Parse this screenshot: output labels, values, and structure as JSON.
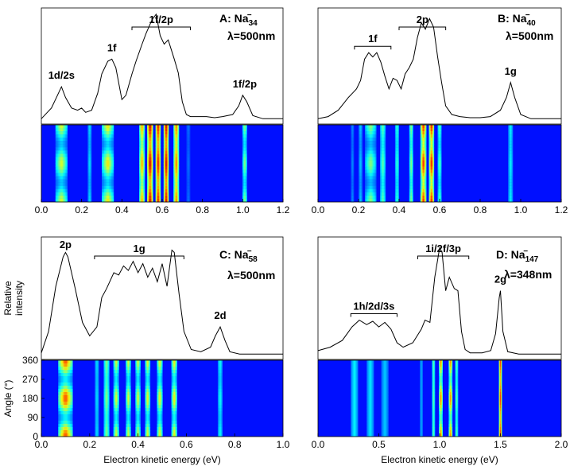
{
  "chart_data": [
    {
      "type": "line",
      "panel": "A",
      "species": "Na",
      "size": "34",
      "charge": "−",
      "wavelength": "λ=500nm",
      "xlim": [
        0,
        1.2
      ],
      "xticks": [
        "0.0",
        "0.2",
        "0.4",
        "0.6",
        "0.8",
        "1.0",
        "1.2"
      ],
      "spectrum": {
        "x": [
          0.0,
          0.05,
          0.08,
          0.1,
          0.12,
          0.15,
          0.18,
          0.2,
          0.22,
          0.25,
          0.28,
          0.3,
          0.33,
          0.35,
          0.37,
          0.4,
          0.42,
          0.45,
          0.47,
          0.5,
          0.52,
          0.55,
          0.57,
          0.59,
          0.61,
          0.63,
          0.66,
          0.68,
          0.7,
          0.72,
          0.74,
          0.78,
          0.82,
          0.86,
          0.9,
          0.95,
          0.98,
          1.0,
          1.02,
          1.05,
          1.1,
          1.15,
          1.2
        ],
        "y": [
          0.02,
          0.12,
          0.24,
          0.32,
          0.22,
          0.12,
          0.1,
          0.12,
          0.08,
          0.1,
          0.26,
          0.44,
          0.56,
          0.58,
          0.5,
          0.2,
          0.24,
          0.44,
          0.56,
          0.72,
          0.82,
          0.95,
          1.0,
          0.8,
          0.72,
          0.76,
          0.58,
          0.45,
          0.18,
          0.06,
          0.04,
          0.04,
          0.04,
          0.03,
          0.04,
          0.06,
          0.14,
          0.24,
          0.18,
          0.05,
          0.02,
          0.02,
          0.02
        ]
      },
      "peaks": [
        {
          "label": "1d/2s",
          "x": 0.1,
          "y": 0.32
        },
        {
          "label": "1f",
          "x": 0.35,
          "y": 0.58
        },
        {
          "label": "1f/2p",
          "x": 0.57,
          "y": 1.0,
          "bracket": [
            0.45,
            0.74
          ]
        },
        {
          "label": "1f/2p",
          "x": 1.01,
          "y": 0.24
        }
      ],
      "angular_map": {
        "bands": [
          {
            "x": 0.1,
            "w": 0.03,
            "i": 0.55,
            "mod": 0.6
          },
          {
            "x": 0.33,
            "w": 0.03,
            "i": 0.6,
            "mod": 0.6
          },
          {
            "x": 0.24,
            "w": 0.01,
            "i": 0.25,
            "mod": 0.2
          },
          {
            "x": 0.5,
            "w": 0.014,
            "i": 0.7,
            "mod": 0.3
          },
          {
            "x": 0.54,
            "w": 0.015,
            "i": 0.95,
            "mod": 0.25
          },
          {
            "x": 0.58,
            "w": 0.013,
            "i": 0.9,
            "mod": 0.2
          },
          {
            "x": 0.62,
            "w": 0.013,
            "i": 0.95,
            "mod": 0.2
          },
          {
            "x": 0.67,
            "w": 0.014,
            "i": 0.75,
            "mod": 0.2
          },
          {
            "x": 0.73,
            "w": 0.01,
            "i": 0.12,
            "mod": 0.2
          },
          {
            "x": 1.01,
            "w": 0.012,
            "i": 0.45,
            "mod": 0.4
          }
        ]
      }
    },
    {
      "type": "line",
      "panel": "B",
      "species": "Na",
      "size": "40",
      "charge": "−",
      "wavelength": "λ=500nm",
      "xlim": [
        0,
        1.2
      ],
      "xticks": [
        "0.0",
        "0.2",
        "0.4",
        "0.6",
        "0.8",
        "1.0",
        "1.2"
      ],
      "spectrum": {
        "x": [
          0.0,
          0.05,
          0.1,
          0.15,
          0.17,
          0.19,
          0.21,
          0.23,
          0.25,
          0.27,
          0.29,
          0.31,
          0.33,
          0.35,
          0.37,
          0.39,
          0.41,
          0.43,
          0.45,
          0.47,
          0.49,
          0.51,
          0.53,
          0.55,
          0.57,
          0.59,
          0.61,
          0.63,
          0.66,
          0.7,
          0.75,
          0.8,
          0.85,
          0.9,
          0.93,
          0.95,
          0.97,
          1.0,
          1.05,
          1.1,
          1.2
        ],
        "y": [
          0.02,
          0.04,
          0.1,
          0.22,
          0.26,
          0.3,
          0.38,
          0.58,
          0.64,
          0.6,
          0.64,
          0.55,
          0.42,
          0.3,
          0.4,
          0.38,
          0.3,
          0.44,
          0.5,
          0.58,
          0.78,
          0.92,
          0.86,
          0.96,
          0.88,
          0.6,
          0.36,
          0.14,
          0.06,
          0.04,
          0.03,
          0.03,
          0.04,
          0.1,
          0.22,
          0.36,
          0.22,
          0.06,
          0.02,
          0.02,
          0.02
        ]
      },
      "peaks": [
        {
          "label": "1f",
          "x": 0.27,
          "y": 0.64,
          "bracket": [
            0.18,
            0.36
          ]
        },
        {
          "label": "2p",
          "x": 0.55,
          "y": 0.96,
          "bracket": [
            0.4,
            0.63
          ]
        },
        {
          "label": "1g",
          "x": 0.95,
          "y": 0.36
        }
      ],
      "angular_map": {
        "bands": [
          {
            "x": 0.17,
            "w": 0.008,
            "i": 0.15,
            "mod": 0.2
          },
          {
            "x": 0.21,
            "w": 0.01,
            "i": 0.22,
            "mod": 0.2
          },
          {
            "x": 0.26,
            "w": 0.028,
            "i": 0.45,
            "mod": 0.55
          },
          {
            "x": 0.32,
            "w": 0.014,
            "i": 0.4,
            "mod": 0.25
          },
          {
            "x": 0.39,
            "w": 0.01,
            "i": 0.35,
            "mod": 0.2
          },
          {
            "x": 0.46,
            "w": 0.01,
            "i": 0.45,
            "mod": 0.25
          },
          {
            "x": 0.52,
            "w": 0.015,
            "i": 0.85,
            "mod": 0.35
          },
          {
            "x": 0.56,
            "w": 0.013,
            "i": 0.88,
            "mod": 0.35
          },
          {
            "x": 0.6,
            "w": 0.01,
            "i": 0.4,
            "mod": 0.3
          },
          {
            "x": 0.95,
            "w": 0.012,
            "i": 0.28,
            "mod": 0.1
          }
        ]
      }
    },
    {
      "type": "line",
      "panel": "C",
      "species": "Na",
      "size": "58",
      "charge": "−",
      "wavelength": "λ=500nm",
      "xlim": [
        0,
        1.0
      ],
      "xticks": [
        "0.0",
        "0.2",
        "0.4",
        "0.6",
        "0.8",
        "1.0"
      ],
      "ylabel": "Relative intensity",
      "map_ylabel": "Angle (°)",
      "map_yticks": [
        "0",
        "90",
        "180",
        "270",
        "360"
      ],
      "spectrum": {
        "x": [
          0.0,
          0.03,
          0.06,
          0.09,
          0.1,
          0.11,
          0.14,
          0.17,
          0.2,
          0.23,
          0.25,
          0.27,
          0.3,
          0.32,
          0.34,
          0.36,
          0.38,
          0.4,
          0.42,
          0.44,
          0.46,
          0.48,
          0.5,
          0.52,
          0.54,
          0.55,
          0.57,
          0.59,
          0.62,
          0.66,
          0.7,
          0.72,
          0.74,
          0.76,
          0.78,
          0.82,
          0.9,
          1.0
        ],
        "y": [
          0.03,
          0.22,
          0.62,
          0.88,
          0.92,
          0.88,
          0.6,
          0.3,
          0.18,
          0.26,
          0.52,
          0.6,
          0.74,
          0.72,
          0.8,
          0.76,
          0.84,
          0.74,
          0.82,
          0.7,
          0.78,
          0.66,
          0.82,
          0.62,
          0.94,
          0.92,
          0.55,
          0.22,
          0.06,
          0.04,
          0.08,
          0.18,
          0.26,
          0.14,
          0.04,
          0.02,
          0.02,
          0.02
        ]
      },
      "peaks": [
        {
          "label": "2p",
          "x": 0.1,
          "y": 0.92
        },
        {
          "label": "1g",
          "x": 0.4,
          "y": 0.84,
          "bracket": [
            0.22,
            0.59
          ]
        },
        {
          "label": "2d",
          "x": 0.74,
          "y": 0.26
        }
      ],
      "angular_map": {
        "bands": [
          {
            "x": 0.1,
            "w": 0.03,
            "i": 0.8,
            "mod": 0.65
          },
          {
            "x": 0.23,
            "w": 0.009,
            "i": 0.25,
            "mod": 0.1
          },
          {
            "x": 0.27,
            "w": 0.012,
            "i": 0.45,
            "mod": 0.2
          },
          {
            "x": 0.31,
            "w": 0.012,
            "i": 0.55,
            "mod": 0.5
          },
          {
            "x": 0.36,
            "w": 0.011,
            "i": 0.55,
            "mod": 0.5
          },
          {
            "x": 0.4,
            "w": 0.011,
            "i": 0.55,
            "mod": 0.5
          },
          {
            "x": 0.44,
            "w": 0.011,
            "i": 0.58,
            "mod": 0.5
          },
          {
            "x": 0.49,
            "w": 0.012,
            "i": 0.58,
            "mod": 0.5
          },
          {
            "x": 0.55,
            "w": 0.012,
            "i": 0.6,
            "mod": 0.5
          },
          {
            "x": 0.74,
            "w": 0.01,
            "i": 0.3,
            "mod": 0.2
          }
        ]
      }
    },
    {
      "type": "line",
      "panel": "D",
      "species": "Na",
      "size": "147",
      "charge": "−",
      "wavelength": "λ=348nm",
      "xlim": [
        0,
        2.0
      ],
      "xticks": [
        "0.0",
        "0.5",
        "1.0",
        "1.5",
        "2.0"
      ],
      "spectrum": {
        "x": [
          0.0,
          0.1,
          0.2,
          0.28,
          0.34,
          0.4,
          0.45,
          0.5,
          0.55,
          0.6,
          0.65,
          0.7,
          0.78,
          0.85,
          0.88,
          0.92,
          0.96,
          1.0,
          1.02,
          1.05,
          1.08,
          1.12,
          1.15,
          1.18,
          1.21,
          1.25,
          1.35,
          1.42,
          1.46,
          1.49,
          1.5,
          1.52,
          1.56,
          1.65,
          2.0
        ],
        "y": [
          0.05,
          0.08,
          0.14,
          0.26,
          0.32,
          0.28,
          0.31,
          0.26,
          0.3,
          0.24,
          0.12,
          0.08,
          0.12,
          0.24,
          0.32,
          0.3,
          0.7,
          0.96,
          0.92,
          0.58,
          0.7,
          0.6,
          0.58,
          0.22,
          0.06,
          0.03,
          0.03,
          0.05,
          0.2,
          0.52,
          0.58,
          0.22,
          0.04,
          0.02,
          0.02
        ]
      },
      "peaks": [
        {
          "label": "1h/2d/3s",
          "x": 0.42,
          "y": 0.32,
          "bracket": [
            0.27,
            0.65
          ]
        },
        {
          "label": "1i/2f/3p",
          "x": 1.02,
          "y": 0.96,
          "bracket": [
            0.82,
            1.24
          ]
        },
        {
          "label": "2g",
          "x": 1.5,
          "y": 0.58
        }
      ],
      "angular_map": {
        "bands": [
          {
            "x": 0.3,
            "w": 0.03,
            "i": 0.28,
            "mod": 0.0
          },
          {
            "x": 0.43,
            "w": 0.03,
            "i": 0.26,
            "mod": 0.0
          },
          {
            "x": 0.55,
            "w": 0.03,
            "i": 0.22,
            "mod": 0.0
          },
          {
            "x": 0.85,
            "w": 0.012,
            "i": 0.18,
            "mod": 0.0
          },
          {
            "x": 0.95,
            "w": 0.012,
            "i": 0.4,
            "mod": 0.1
          },
          {
            "x": 1.01,
            "w": 0.016,
            "i": 0.75,
            "mod": 0.45
          },
          {
            "x": 1.09,
            "w": 0.016,
            "i": 0.75,
            "mod": 0.45
          },
          {
            "x": 1.14,
            "w": 0.01,
            "i": 0.4,
            "mod": 0.2
          },
          {
            "x": 1.5,
            "w": 0.013,
            "i": 0.85,
            "mod": 0.2
          }
        ]
      }
    }
  ],
  "shared": {
    "xlabel": "Electron kinetic energy (eV)"
  }
}
